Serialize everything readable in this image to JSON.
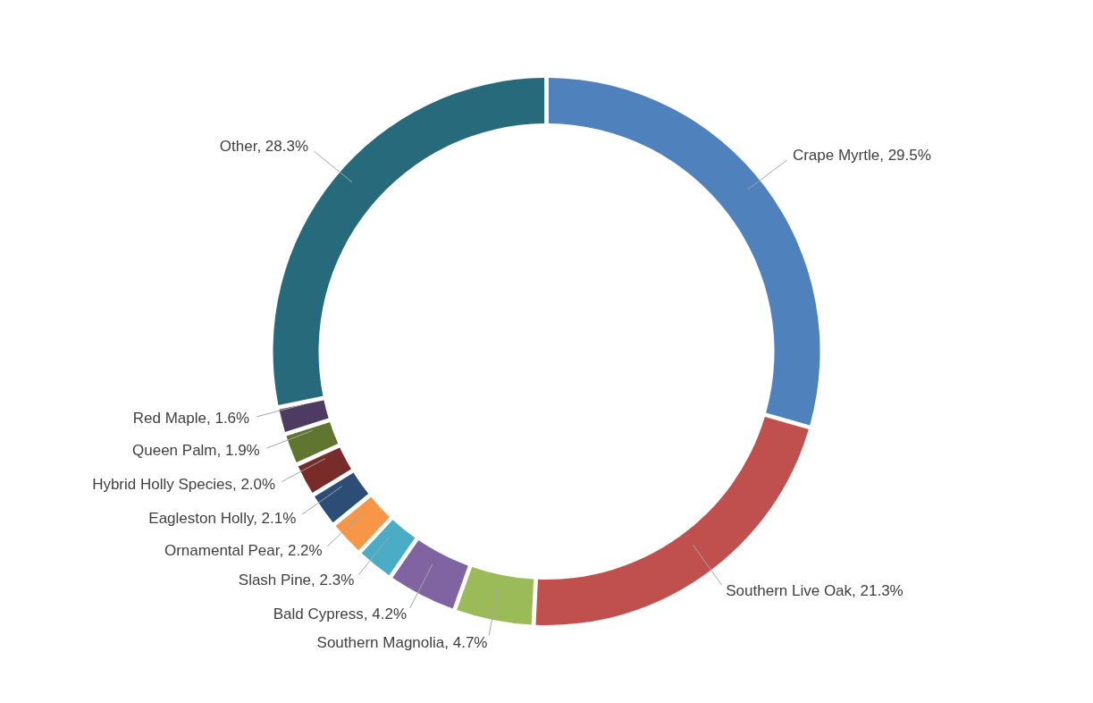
{
  "chart_data": {
    "type": "donut",
    "categories": [
      "Crape Myrtle",
      "Southern Live Oak",
      "Southern Magnolia",
      "Bald Cypress",
      "Slash Pine",
      "Ornamental Pear",
      "Eagleston Holly",
      "Hybrid Holly Species",
      "Queen Palm",
      "Red Maple",
      "Other"
    ],
    "values": [
      29.5,
      21.3,
      4.7,
      4.2,
      2.3,
      2.2,
      2.1,
      2.0,
      1.9,
      1.6,
      28.3
    ],
    "colors": [
      "#4f81bd",
      "#c0504d",
      "#9bbb59",
      "#8064a2",
      "#4bacc6",
      "#f79646",
      "#2c4d75",
      "#772c2a",
      "#5f7530",
      "#4d3b62",
      "#276a7c"
    ],
    "value_labels": [
      "29.5%",
      "21.3%",
      "4.7%",
      "4.2%",
      "2.3%",
      "2.2%",
      "2.1%",
      "2.0%",
      "1.9%",
      "1.6%",
      "28.3%"
    ],
    "legend": false
  }
}
